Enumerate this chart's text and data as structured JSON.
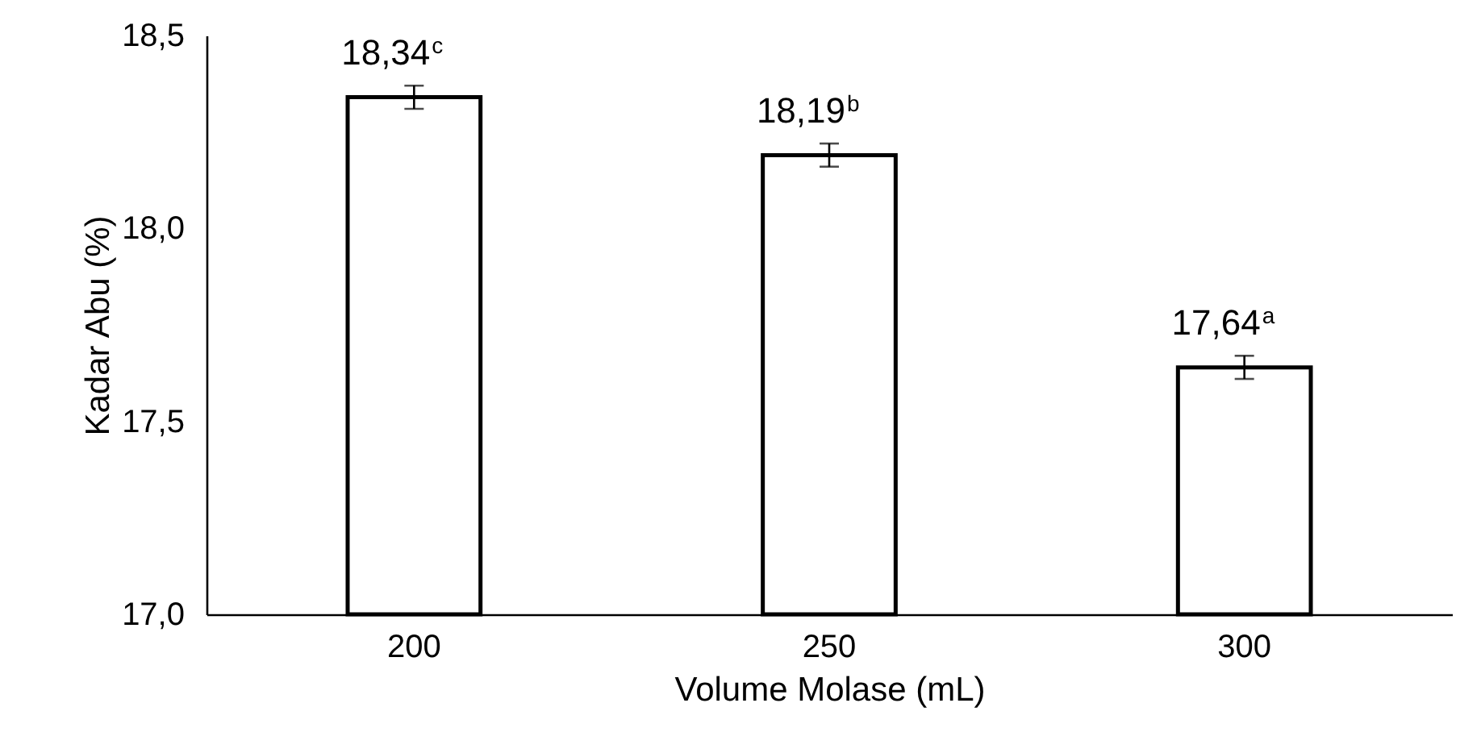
{
  "chart_data": {
    "type": "bar",
    "xlabel": "Volume Molase (mL)",
    "ylabel": "Kadar Abu (%)",
    "categories": [
      "200",
      "250",
      "300"
    ],
    "values": [
      18.34,
      18.19,
      17.64
    ],
    "errors": [
      0.03,
      0.03,
      0.03
    ],
    "value_labels": [
      "18,34$^{c}$",
      "18,19$^{b}$",
      "17,64$^{a}$"
    ],
    "color": "#ffffff",
    "ylim": [
      17,
      18.5
    ],
    "yticks": [
      {
        "value": 17,
        "label": "17,0"
      },
      {
        "value": 17.5,
        "label": "17,5"
      },
      {
        "value": 18,
        "label": "18,0"
      },
      {
        "value": 18.5,
        "label": "18,5"
      }
    ],
    "grid": false
  }
}
